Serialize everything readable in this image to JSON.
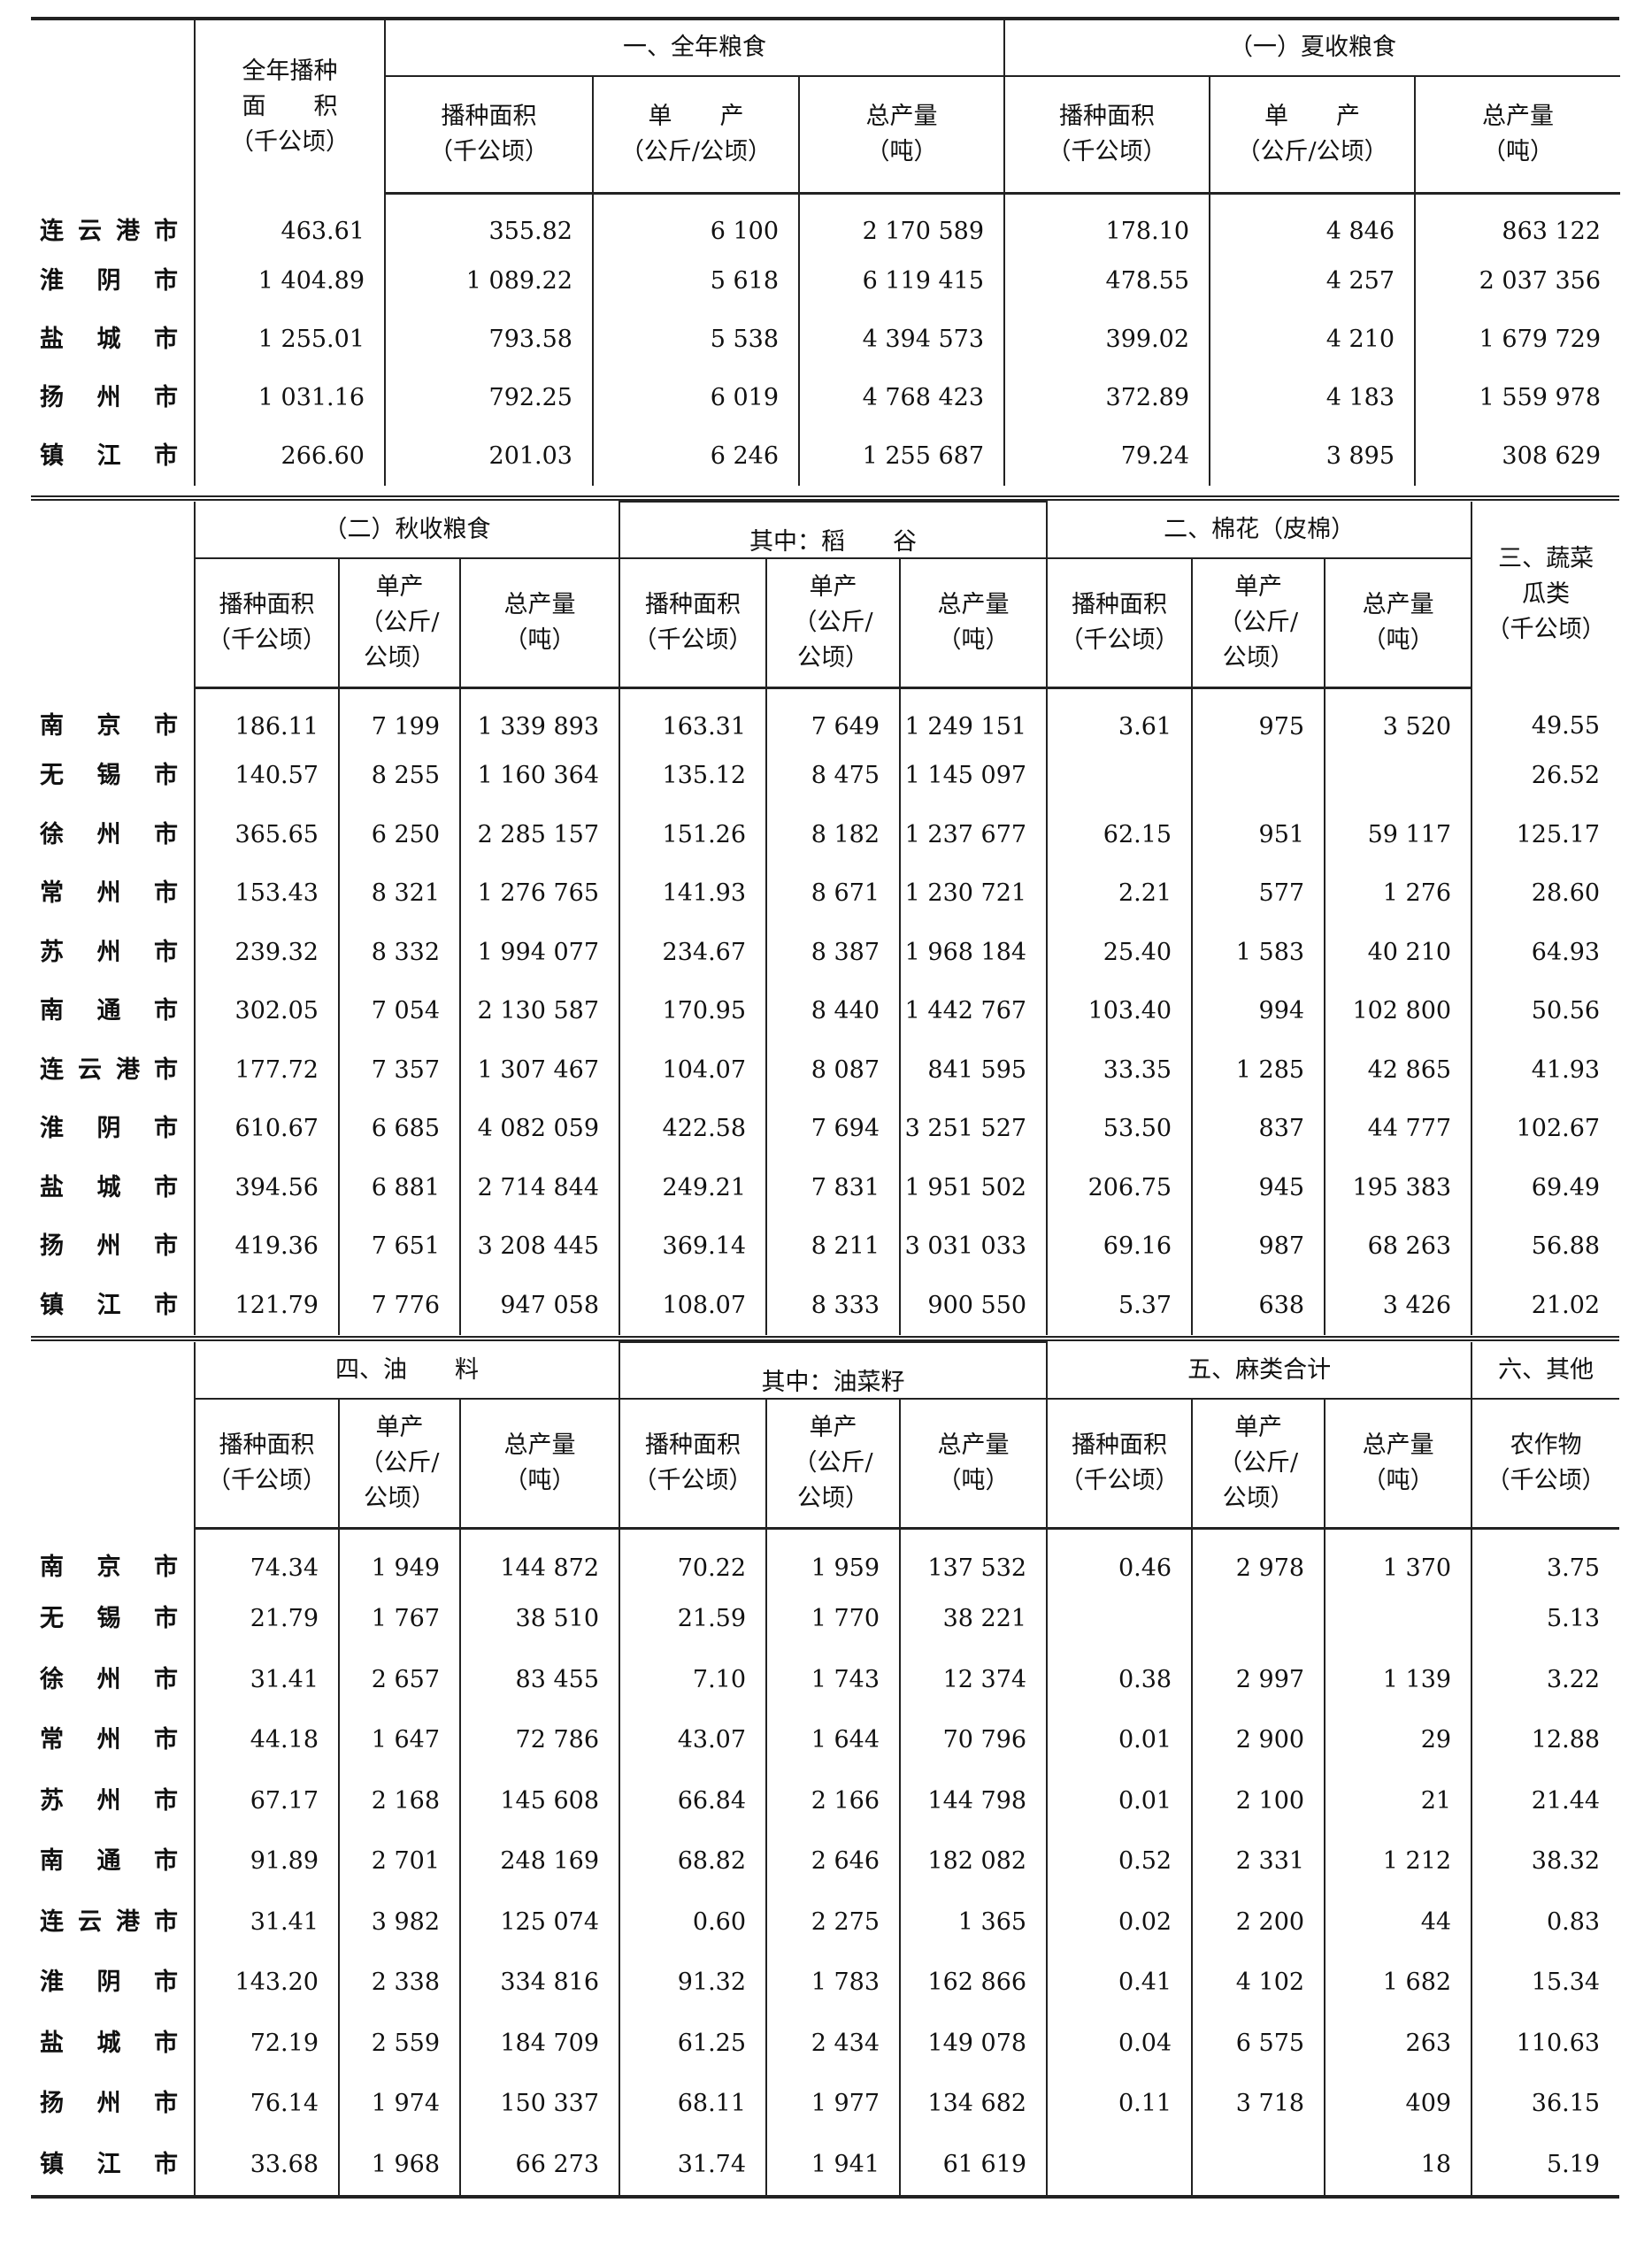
{
  "sections": [
    {
      "id": "s1",
      "widths": [
        185,
        215,
        235,
        233,
        232,
        232,
        232,
        232
      ],
      "lead_header": "全年播种\n面　　积\n（千公顷）",
      "groups": [
        {
          "label": "一、全年粮食",
          "span": 3
        },
        {
          "label": "（一）夏收粮食",
          "span": 3
        }
      ],
      "sub_headers": [
        "播种面积\n（千公顷）",
        "单　　产\n（公斤/公顷）",
        "总产量\n（吨）",
        "播种面积\n（千公顷）",
        "单　　产\n（公斤/公顷）",
        "总产量\n（吨）"
      ],
      "rows": [
        {
          "city": "连云港市",
          "values": [
            "463.61",
            "355.82",
            "6 100",
            "2 170 589",
            "178.10",
            "4 846",
            "863 122"
          ]
        },
        {
          "city": "淮阴市",
          "values": [
            "1 404.89",
            "1 089.22",
            "5 618",
            "6 119 415",
            "478.55",
            "4 257",
            "2 037 356"
          ]
        },
        {
          "city": "盐城市",
          "values": [
            "1 255.01",
            "793.58",
            "5 538",
            "4 394 573",
            "399.02",
            "4 210",
            "1 679 729"
          ]
        },
        {
          "city": "扬州市",
          "values": [
            "1 031.16",
            "792.25",
            "6 019",
            "4 768 423",
            "372.89",
            "4 183",
            "1 559 978"
          ]
        },
        {
          "city": "镇江市",
          "values": [
            "266.60",
            "201.03",
            "6 246",
            "1 255 687",
            "79.24",
            "3 895",
            "308 629"
          ]
        }
      ]
    },
    {
      "id": "s2",
      "widths": [
        185,
        163,
        137,
        180,
        166,
        151,
        166,
        164,
        150,
        166,
        167
      ],
      "groups": [
        {
          "label": "（二）秋收粮食",
          "span": 3
        },
        {
          "label": "其中：稻　　谷",
          "span": 3,
          "sub": true
        },
        {
          "label": "二、棉花（皮棉）",
          "span": 3
        }
      ],
      "tail_header": "三、蔬菜\n瓜类\n（千公顷）",
      "sub_headers": [
        "播种面积\n（千公顷）",
        "单产\n（公斤/\n公顷）",
        "总产量\n（吨）",
        "播种面积\n（千公顷）",
        "单产\n（公斤/\n公顷）",
        "总产量\n（吨）",
        "播种面积\n（千公顷）",
        "单产\n（公斤/\n公顷）",
        "总产量\n（吨）"
      ],
      "rows": [
        {
          "city": "南京市",
          "values": [
            "186.11",
            "7 199",
            "1 339 893",
            "163.31",
            "7 649",
            "1 249 151",
            "3.61",
            "975",
            "3 520",
            "49.55"
          ]
        },
        {
          "city": "无锡市",
          "values": [
            "140.57",
            "8 255",
            "1 160 364",
            "135.12",
            "8 475",
            "1 145 097",
            "",
            "",
            "",
            "26.52"
          ]
        },
        {
          "city": "徐州市",
          "values": [
            "365.65",
            "6 250",
            "2 285 157",
            "151.26",
            "8 182",
            "1 237 677",
            "62.15",
            "951",
            "59 117",
            "125.17"
          ]
        },
        {
          "city": "常州市",
          "values": [
            "153.43",
            "8 321",
            "1 276 765",
            "141.93",
            "8 671",
            "1 230 721",
            "2.21",
            "577",
            "1 276",
            "28.60"
          ]
        },
        {
          "city": "苏州市",
          "values": [
            "239.32",
            "8 332",
            "1 994 077",
            "234.67",
            "8 387",
            "1 968 184",
            "25.40",
            "1 583",
            "40 210",
            "64.93"
          ]
        },
        {
          "city": "南通市",
          "values": [
            "302.05",
            "7 054",
            "2 130 587",
            "170.95",
            "8 440",
            "1 442 767",
            "103.40",
            "994",
            "102 800",
            "50.56"
          ]
        },
        {
          "city": "连云港市",
          "values": [
            "177.72",
            "7 357",
            "1 307 467",
            "104.07",
            "8 087",
            "841 595",
            "33.35",
            "1 285",
            "42 865",
            "41.93"
          ]
        },
        {
          "city": "淮阴市",
          "values": [
            "610.67",
            "6 685",
            "4 082 059",
            "422.58",
            "7 694",
            "3 251 527",
            "53.50",
            "837",
            "44 777",
            "102.67"
          ]
        },
        {
          "city": "盐城市",
          "values": [
            "394.56",
            "6 881",
            "2 714 844",
            "249.21",
            "7 831",
            "1 951 502",
            "206.75",
            "945",
            "195 383",
            "69.49"
          ]
        },
        {
          "city": "扬州市",
          "values": [
            "419.36",
            "7 651",
            "3 208 445",
            "369.14",
            "8 211",
            "3 031 033",
            "69.16",
            "987",
            "68 263",
            "56.88"
          ]
        },
        {
          "city": "镇江市",
          "values": [
            "121.79",
            "7 776",
            "947 058",
            "108.07",
            "8 333",
            "900 550",
            "5.37",
            "638",
            "3 426",
            "21.02"
          ]
        }
      ]
    },
    {
      "id": "s3",
      "widths": [
        185,
        163,
        137,
        180,
        166,
        151,
        166,
        164,
        150,
        166,
        167
      ],
      "groups": [
        {
          "label": "四、油　　料",
          "span": 3
        },
        {
          "label": "其中：油菜籽",
          "span": 3,
          "sub": true
        },
        {
          "label": "五、麻类合计",
          "span": 3
        },
        {
          "label": "六、其他",
          "span": 1
        }
      ],
      "sub_headers": [
        "播种面积\n（千公顷）",
        "单产\n（公斤/\n公顷）",
        "总产量\n（吨）",
        "播种面积\n（千公顷）",
        "单产\n（公斤/\n公顷）",
        "总产量\n（吨）",
        "播种面积\n（千公顷）",
        "单产\n（公斤/\n公顷）",
        "总产量\n（吨）",
        "农作物\n（千公顷）"
      ],
      "rows": [
        {
          "city": "南京市",
          "values": [
            "74.34",
            "1 949",
            "144 872",
            "70.22",
            "1 959",
            "137 532",
            "0.46",
            "2 978",
            "1 370",
            "3.75"
          ]
        },
        {
          "city": "无锡市",
          "values": [
            "21.79",
            "1 767",
            "38 510",
            "21.59",
            "1 770",
            "38 221",
            "",
            "",
            "",
            "5.13"
          ]
        },
        {
          "city": "徐州市",
          "values": [
            "31.41",
            "2 657",
            "83 455",
            "7.10",
            "1 743",
            "12 374",
            "0.38",
            "2 997",
            "1 139",
            "3.22"
          ]
        },
        {
          "city": "常州市",
          "values": [
            "44.18",
            "1 647",
            "72 786",
            "43.07",
            "1 644",
            "70 796",
            "0.01",
            "2 900",
            "29",
            "12.88"
          ]
        },
        {
          "city": "苏州市",
          "values": [
            "67.17",
            "2 168",
            "145 608",
            "66.84",
            "2 166",
            "144 798",
            "0.01",
            "2 100",
            "21",
            "21.44"
          ]
        },
        {
          "city": "南通市",
          "values": [
            "91.89",
            "2 701",
            "248 169",
            "68.82",
            "2 646",
            "182 082",
            "0.52",
            "2 331",
            "1 212",
            "38.32"
          ]
        },
        {
          "city": "连云港市",
          "values": [
            "31.41",
            "3 982",
            "125 074",
            "0.60",
            "2 275",
            "1 365",
            "0.02",
            "2 200",
            "44",
            "0.83"
          ]
        },
        {
          "city": "淮阴市",
          "values": [
            "143.20",
            "2 338",
            "334 816",
            "91.32",
            "1 783",
            "162 866",
            "0.41",
            "4 102",
            "1 682",
            "15.34"
          ]
        },
        {
          "city": "盐城市",
          "values": [
            "72.19",
            "2 559",
            "184 709",
            "61.25",
            "2 434",
            "149 078",
            "0.04",
            "6 575",
            "263",
            "110.63"
          ]
        },
        {
          "city": "扬州市",
          "values": [
            "76.14",
            "1 974",
            "150 337",
            "68.11",
            "1 977",
            "134 682",
            "0.11",
            "3 718",
            "409",
            "36.15"
          ]
        },
        {
          "city": "镇江市",
          "values": [
            "33.68",
            "1 968",
            "66 273",
            "31.74",
            "1 941",
            "61 619",
            "",
            "",
            "18",
            "5.19"
          ]
        }
      ]
    }
  ]
}
